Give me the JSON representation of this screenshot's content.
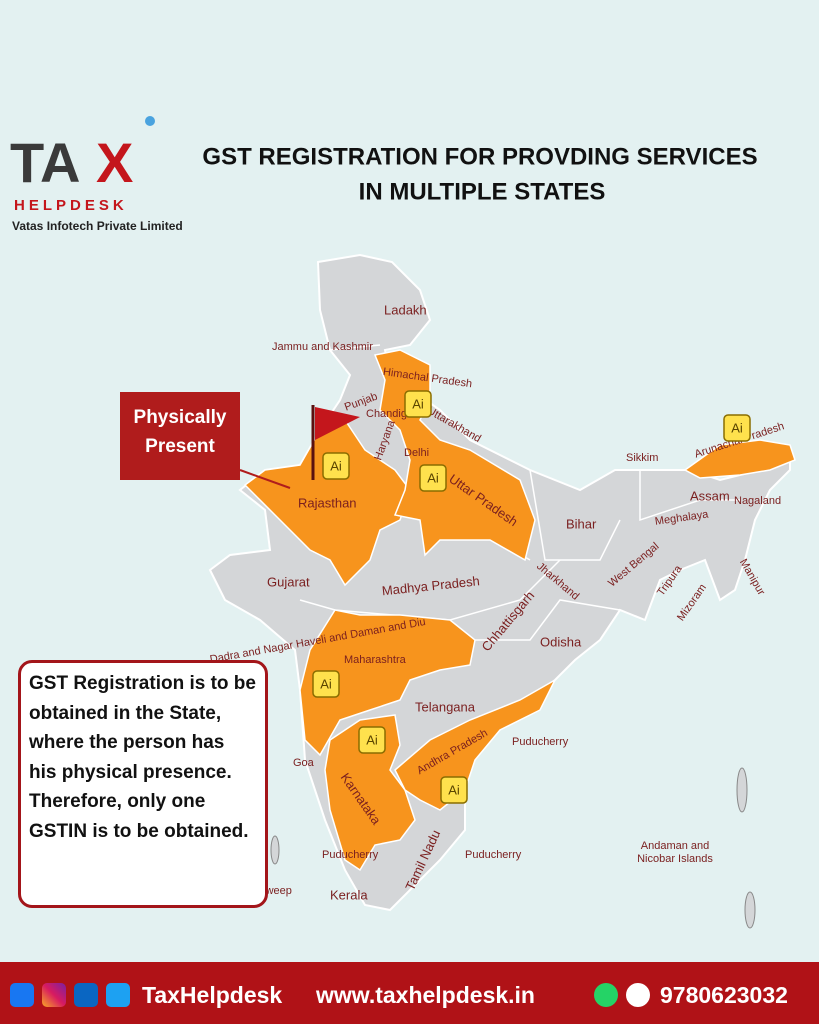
{
  "header": {
    "logo_main": "TA",
    "logo_accent": "X",
    "logo_sub": "HELPDESK",
    "company": "Vatas Infotech Private Limited",
    "title_lines": [
      "GST REGISTRATION FOR PROVDING SERVICES",
      "IN MULTIPLE STATES"
    ]
  },
  "callout": {
    "lines": [
      "Physically",
      "Present"
    ]
  },
  "note": {
    "text": "GST Registration is to be obtained in the State, where the person has his physical presence. Therefore, only one GSTIN is to be obtained."
  },
  "map": {
    "badge_label": "Ai",
    "labels": [
      "Ladakh",
      "Jammu and Kashmir",
      "Himachal Pradesh",
      "Punjab",
      "Chandigarh",
      "Uttarakhand",
      "Haryana",
      "Delhi",
      "Rajasthan",
      "Uttar Pradesh",
      "Sikkim",
      "Arunachal Pradesh",
      "Assam",
      "Nagaland",
      "Meghalaya",
      "Bihar",
      "Gujarat",
      "Madhya Pradesh",
      "Jharkhand",
      "West Bengal",
      "Tripura",
      "Mizoram",
      "Manipur",
      "Chhattisgarh",
      "Odisha",
      "Dadra and Nagar Haveli and Daman and Diu",
      "Maharashtra",
      "Telangana",
      "Goa",
      "Andhra Pradesh",
      "Puducherry",
      "Karnataka",
      "Puducherry",
      "Puducherry",
      "Tamil Nadu",
      "Kerala",
      "Lakshadweep",
      "Andaman and Nicobar Islands"
    ]
  },
  "footer": {
    "brand": "TaxHelpdesk",
    "website": "www.taxhelpdesk.in",
    "phone": "9780623032"
  }
}
